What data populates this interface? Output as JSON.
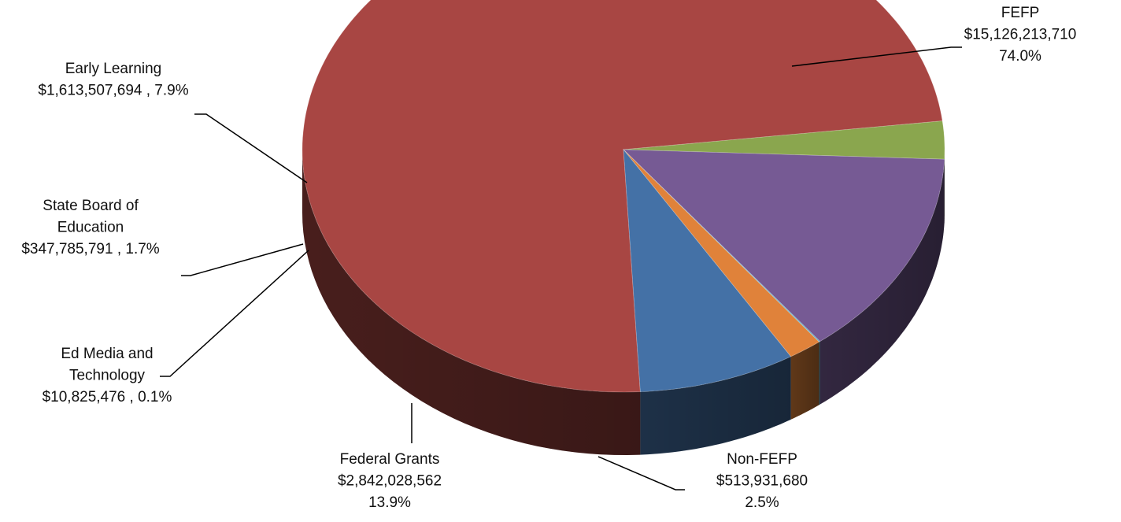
{
  "chart_data": {
    "type": "pie",
    "title": "",
    "style": "3d",
    "slices": [
      {
        "name": "FEFP",
        "value": 15126213710,
        "value_label": "$15,126,213,710",
        "percent_label": "74.0%",
        "color": "#A84643"
      },
      {
        "name": "Non-FEFP",
        "value": 513931680,
        "value_label": "$513,931,680",
        "percent_label": "2.5%",
        "color": "#8AA64E"
      },
      {
        "name": "Federal Grants",
        "value": 2842028562,
        "value_label": "$2,842,028,562",
        "percent_label": "13.9%",
        "color": "#765A94"
      },
      {
        "name": "Ed Media and Technology",
        "value": 10825476,
        "value_label": "$10,825,476 , 0.1%",
        "percent_label": "",
        "color": "#4BACC6"
      },
      {
        "name": "State Board of Education",
        "value": 347785791,
        "value_label": "$347,785,791 , 1.7%",
        "percent_label": "",
        "color": "#E0823A"
      },
      {
        "name": "Early Learning",
        "value": 1613507694,
        "value_label": "$1,613,507,694 , 7.9%",
        "percent_label": "",
        "color": "#4471A6"
      }
    ],
    "labels": {
      "fefp": [
        "FEFP",
        "$15,126,213,710",
        "74.0%"
      ],
      "non_fefp": [
        "Non-FEFP",
        "$513,931,680",
        "2.5%"
      ],
      "federal": [
        "Federal Grants",
        "$2,842,028,562",
        "13.9%"
      ],
      "edmedia": [
        "Ed Media and",
        "Technology",
        "$10,825,476 , 0.1%"
      ],
      "sbe": [
        "State Board of",
        "Education",
        "$347,785,791 , 1.7%"
      ],
      "early": [
        "Early Learning",
        "$1,613,507,694 , 7.9%"
      ]
    }
  }
}
